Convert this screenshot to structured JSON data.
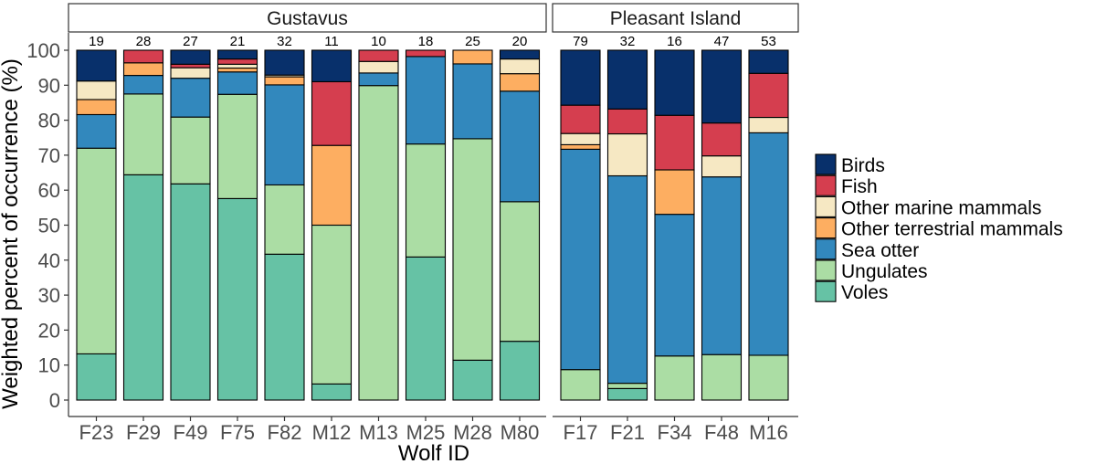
{
  "chart_data": {
    "type": "stacked-bar",
    "ylabel": "Weighted percent of occurrence (%)",
    "xlabel": "Wolf ID",
    "ylim": [
      0,
      100
    ],
    "yticks": [
      0,
      10,
      20,
      30,
      40,
      50,
      60,
      70,
      80,
      90,
      100
    ],
    "legend_position": "right",
    "categories_order": [
      "Voles",
      "Ungulates",
      "Sea otter",
      "Other terrestrial mammals",
      "Other marine mammals",
      "Fish",
      "Birds"
    ],
    "legend_order": [
      "Birds",
      "Fish",
      "Other marine mammals",
      "Other terrestrial mammals",
      "Sea otter",
      "Ungulates",
      "Voles"
    ],
    "colors": {
      "Birds": "#08306b",
      "Fish": "#d53e4f",
      "Other marine mammals": "#f6e8c3",
      "Other terrestrial mammals": "#fdae61",
      "Sea otter": "#3288bd",
      "Ungulates": "#abdda4",
      "Voles": "#66c2a5"
    },
    "panels": [
      {
        "name": "Gustavus",
        "bars": [
          {
            "id": "F23",
            "n": "19",
            "values": {
              "Voles": 13.2,
              "Ungulates": 58.8,
              "Sea otter": 9.6,
              "Other terrestrial mammals": 4.3,
              "Other marine mammals": 5.3,
              "Fish": 0,
              "Birds": 8.8
            }
          },
          {
            "id": "F29",
            "n": "28",
            "values": {
              "Voles": 64.4,
              "Ungulates": 23.1,
              "Sea otter": 5.3,
              "Other terrestrial mammals": 3.6,
              "Other marine mammals": 0,
              "Fish": 3.6,
              "Birds": 0
            }
          },
          {
            "id": "F49",
            "n": "27",
            "values": {
              "Voles": 61.8,
              "Ungulates": 19.1,
              "Sea otter": 11.1,
              "Other terrestrial mammals": 0,
              "Other marine mammals": 3.0,
              "Fish": 1.0,
              "Birds": 4.0
            }
          },
          {
            "id": "F75",
            "n": "21",
            "values": {
              "Voles": 57.6,
              "Ungulates": 29.8,
              "Sea otter": 6.4,
              "Other terrestrial mammals": 1.1,
              "Other marine mammals": 1.1,
              "Fish": 1.5,
              "Birds": 2.5
            }
          },
          {
            "id": "F82",
            "n": "32",
            "values": {
              "Voles": 41.7,
              "Ungulates": 19.8,
              "Sea otter": 28.6,
              "Other terrestrial mammals": 2.3,
              "Other marine mammals": 0.5,
              "Fish": 0,
              "Birds": 7.1
            }
          },
          {
            "id": "M12",
            "n": "11",
            "values": {
              "Voles": 4.6,
              "Ungulates": 45.4,
              "Sea otter": 0,
              "Other terrestrial mammals": 22.8,
              "Other marine mammals": 0,
              "Fish": 18.2,
              "Birds": 9.0
            }
          },
          {
            "id": "M13",
            "n": "10",
            "values": {
              "Voles": 0,
              "Ungulates": 89.9,
              "Sea otter": 3.6,
              "Other terrestrial mammals": 0,
              "Other marine mammals": 3.3,
              "Fish": 3.2,
              "Birds": 0
            }
          },
          {
            "id": "M25",
            "n": "18",
            "values": {
              "Voles": 40.9,
              "Ungulates": 32.3,
              "Sea otter": 25.0,
              "Other terrestrial mammals": 0,
              "Other marine mammals": 0,
              "Fish": 1.8,
              "Birds": 0
            }
          },
          {
            "id": "M28",
            "n": "25",
            "values": {
              "Voles": 11.4,
              "Ungulates": 63.3,
              "Sea otter": 21.4,
              "Other terrestrial mammals": 3.9,
              "Other marine mammals": 0,
              "Fish": 0,
              "Birds": 0
            }
          },
          {
            "id": "M80",
            "n": "20",
            "values": {
              "Voles": 16.8,
              "Ungulates": 39.9,
              "Sea otter": 31.6,
              "Other terrestrial mammals": 5.0,
              "Other marine mammals": 4.2,
              "Fish": 0,
              "Birds": 2.5
            }
          }
        ]
      },
      {
        "name": "Pleasant Island",
        "bars": [
          {
            "id": "F17",
            "n": "79",
            "values": {
              "Voles": 0,
              "Ungulates": 8.7,
              "Sea otter": 63.0,
              "Other terrestrial mammals": 1.3,
              "Other marine mammals": 3.2,
              "Fish": 8.1,
              "Birds": 15.7
            }
          },
          {
            "id": "F21",
            "n": "32",
            "values": {
              "Voles": 3.3,
              "Ungulates": 1.5,
              "Sea otter": 59.3,
              "Other terrestrial mammals": 0,
              "Other marine mammals": 12.0,
              "Fish": 7.1,
              "Birds": 16.8
            }
          },
          {
            "id": "F34",
            "n": "16",
            "values": {
              "Voles": 0,
              "Ungulates": 12.6,
              "Sea otter": 40.5,
              "Other terrestrial mammals": 12.7,
              "Other marine mammals": 0,
              "Fish": 15.6,
              "Birds": 18.6
            }
          },
          {
            "id": "F48",
            "n": "47",
            "values": {
              "Voles": 0,
              "Ungulates": 13.0,
              "Sea otter": 50.8,
              "Other terrestrial mammals": 0,
              "Other marine mammals": 6.0,
              "Fish": 9.4,
              "Birds": 20.8
            }
          },
          {
            "id": "M16",
            "n": "53",
            "values": {
              "Voles": 0,
              "Ungulates": 12.8,
              "Sea otter": 63.6,
              "Other terrestrial mammals": 0,
              "Other marine mammals": 4.4,
              "Fish": 12.6,
              "Birds": 6.6
            }
          }
        ]
      }
    ]
  }
}
